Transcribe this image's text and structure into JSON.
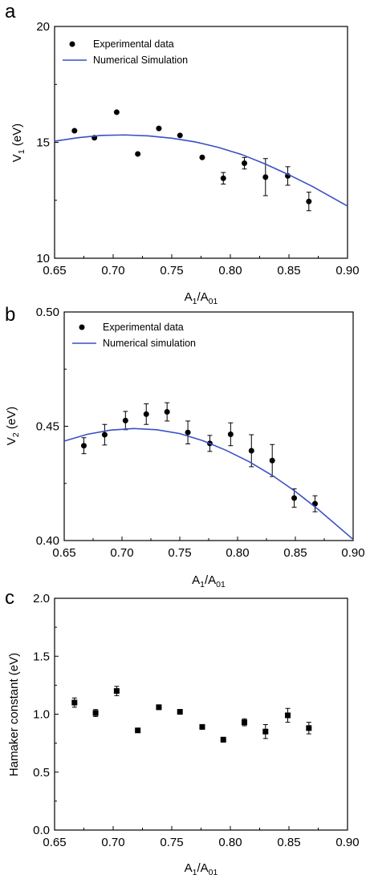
{
  "chart_data": [
    {
      "panel": "a",
      "type": "scatter",
      "xlabel": {
        "main": "A",
        "s1": "1",
        "mid": "/A",
        "s2": "01"
      },
      "ylabel": {
        "main": "V",
        "s1": "1",
        "rest": " (eV)"
      },
      "xlim": [
        0.65,
        0.9
      ],
      "ylim": [
        10,
        20
      ],
      "xticks": [
        "0.65",
        "0.70",
        "0.75",
        "0.80",
        "0.85",
        "0.90"
      ],
      "yticks": [
        "10",
        "15",
        "20"
      ],
      "marker": "circle",
      "series": [
        {
          "name": "Experimental data",
          "x": [
            0.667,
            0.684,
            0.703,
            0.721,
            0.739,
            0.757,
            0.776,
            0.794,
            0.812,
            0.83,
            0.849,
            0.867
          ],
          "y": [
            15.5,
            15.2,
            16.3,
            14.5,
            15.6,
            15.3,
            14.35,
            13.45,
            14.1,
            13.5,
            13.55,
            12.45
          ],
          "err": [
            0,
            0,
            0,
            0,
            0,
            0,
            0,
            0.25,
            0.25,
            0.8,
            0.4,
            0.4
          ]
        },
        {
          "name": "Numerical Simulation",
          "type": "line",
          "x": [
            0.65,
            0.67,
            0.69,
            0.71,
            0.73,
            0.75,
            0.77,
            0.79,
            0.81,
            0.83,
            0.85,
            0.87,
            0.9
          ],
          "y": [
            15.05,
            15.2,
            15.3,
            15.32,
            15.28,
            15.18,
            15.02,
            14.78,
            14.47,
            14.06,
            13.6,
            13.1,
            12.25
          ]
        }
      ],
      "legend": "top-left"
    },
    {
      "panel": "b",
      "type": "scatter",
      "xlabel": {
        "main": "A",
        "s1": "1",
        "mid": "/A",
        "s2": "01"
      },
      "ylabel": {
        "main": "V",
        "s1": "2",
        "rest": " (eV)"
      },
      "xlim": [
        0.65,
        0.9
      ],
      "ylim": [
        0.4,
        0.5
      ],
      "xticks": [
        "0.65",
        "0.70",
        "0.75",
        "0.80",
        "0.85",
        "0.90"
      ],
      "yticks": [
        "0.40",
        "0.45",
        "0.50"
      ],
      "marker": "circle",
      "series": [
        {
          "name": "Experimental data",
          "x": [
            0.667,
            0.685,
            0.703,
            0.721,
            0.739,
            0.757,
            0.776,
            0.794,
            0.812,
            0.83,
            0.849,
            0.867
          ],
          "y": [
            0.4415,
            0.4463,
            0.4525,
            0.4553,
            0.4563,
            0.4473,
            0.4425,
            0.4465,
            0.4393,
            0.435,
            0.4186,
            0.4161
          ],
          "err": [
            0.0035,
            0.0045,
            0.004,
            0.0045,
            0.004,
            0.005,
            0.0035,
            0.005,
            0.007,
            0.007,
            0.004,
            0.0035
          ]
        },
        {
          "name": "Numerical simulation",
          "type": "line",
          "x": [
            0.65,
            0.67,
            0.69,
            0.71,
            0.73,
            0.75,
            0.77,
            0.79,
            0.81,
            0.83,
            0.85,
            0.87,
            0.9
          ],
          "y": [
            0.4435,
            0.4465,
            0.4483,
            0.449,
            0.4485,
            0.4468,
            0.4437,
            0.4395,
            0.4345,
            0.4285,
            0.4215,
            0.4135,
            0.4005
          ]
        }
      ],
      "legend": "top-left"
    },
    {
      "panel": "c",
      "type": "scatter",
      "xlabel": {
        "main": "A",
        "s1": "1",
        "mid": "/A",
        "s2": "01"
      },
      "ylabel": {
        "main": "Hamaker constant (eV)",
        "s1": "",
        "rest": ""
      },
      "xlim": [
        0.65,
        0.9
      ],
      "ylim": [
        0.0,
        2.0
      ],
      "xticks": [
        "0.65",
        "0.70",
        "0.75",
        "0.80",
        "0.85",
        "0.90"
      ],
      "yticks": [
        "0.0",
        "0.5",
        "1.0",
        "1.5",
        "2.0"
      ],
      "marker": "square",
      "series": [
        {
          "name": "",
          "x": [
            0.667,
            0.685,
            0.703,
            0.721,
            0.739,
            0.757,
            0.776,
            0.794,
            0.812,
            0.83,
            0.849,
            0.867
          ],
          "y": [
            1.1,
            1.01,
            1.2,
            0.86,
            1.06,
            1.02,
            0.89,
            0.78,
            0.93,
            0.85,
            0.99,
            0.88
          ],
          "err": [
            0.04,
            0.03,
            0.04,
            0.015,
            0.02,
            0.02,
            0.015,
            0.02,
            0.03,
            0.06,
            0.06,
            0.05
          ]
        }
      ],
      "legend": "none"
    }
  ]
}
